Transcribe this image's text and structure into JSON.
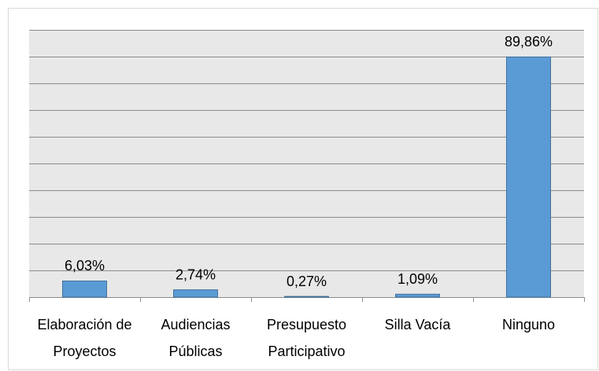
{
  "chart_data": {
    "type": "bar",
    "categories": [
      "Elaboración de Proyectos",
      "Audiencias Públicas",
      "Presupuesto Participativo",
      "Silla Vacía",
      "Ninguno"
    ],
    "values": [
      6.03,
      2.74,
      0.27,
      1.09,
      89.86
    ],
    "value_labels": [
      "6,03%",
      "2,74%",
      "0,27%",
      "1,09%",
      "89,86%"
    ],
    "color": "#5b9bd5",
    "ylim": [
      0,
      100
    ],
    "yticks": [
      0,
      10,
      20,
      30,
      40,
      50,
      60,
      70,
      80,
      90,
      100
    ],
    "grid": true
  }
}
